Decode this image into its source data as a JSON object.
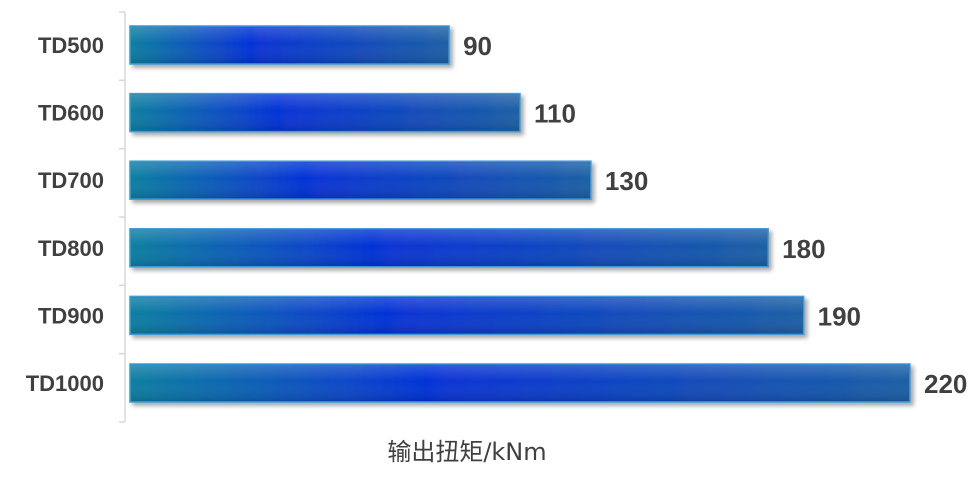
{
  "chart_data": {
    "type": "bar",
    "orientation": "horizontal",
    "categories": [
      "TD500",
      "TD600",
      "TD700",
      "TD800",
      "TD900",
      "TD1000"
    ],
    "values": [
      90,
      110,
      130,
      180,
      190,
      220
    ],
    "xlabel": "输出扭矩/kNm",
    "ylabel": "",
    "xlim": [
      0,
      220
    ],
    "grid": false,
    "legend": "none",
    "data_labels": true,
    "colors": {
      "bar_edge": "#0a7fa0",
      "bar_mid": "#0633d6",
      "bar_end": "#1c5fa5",
      "bar_border": "#3f9ad6",
      "text": "#404040",
      "axis": "#d9d9d9"
    }
  }
}
